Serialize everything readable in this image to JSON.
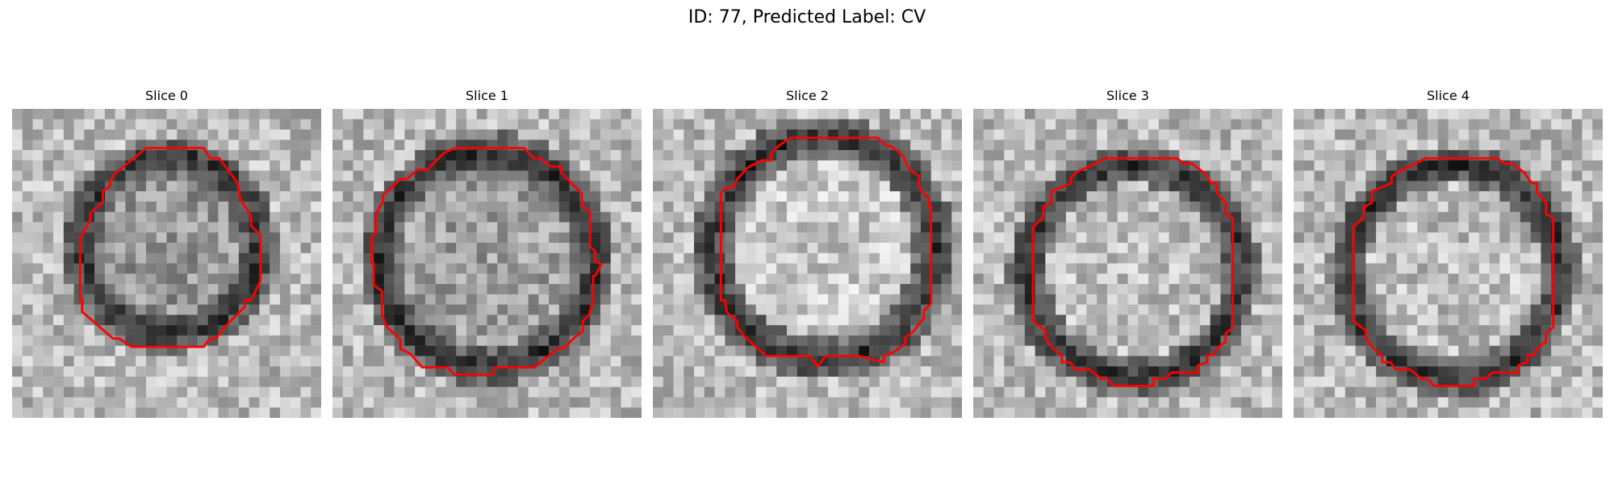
{
  "figure": {
    "title": "ID: 77, Predicted Label: CV"
  },
  "panels": [
    {
      "title": "Slice 0"
    },
    {
      "title": "Slice 1"
    },
    {
      "title": "Slice 2"
    },
    {
      "title": "Slice 3"
    },
    {
      "title": "Slice 4"
    }
  ],
  "colors": {
    "contour": "#ff0000",
    "colormap": "grayscale"
  }
}
